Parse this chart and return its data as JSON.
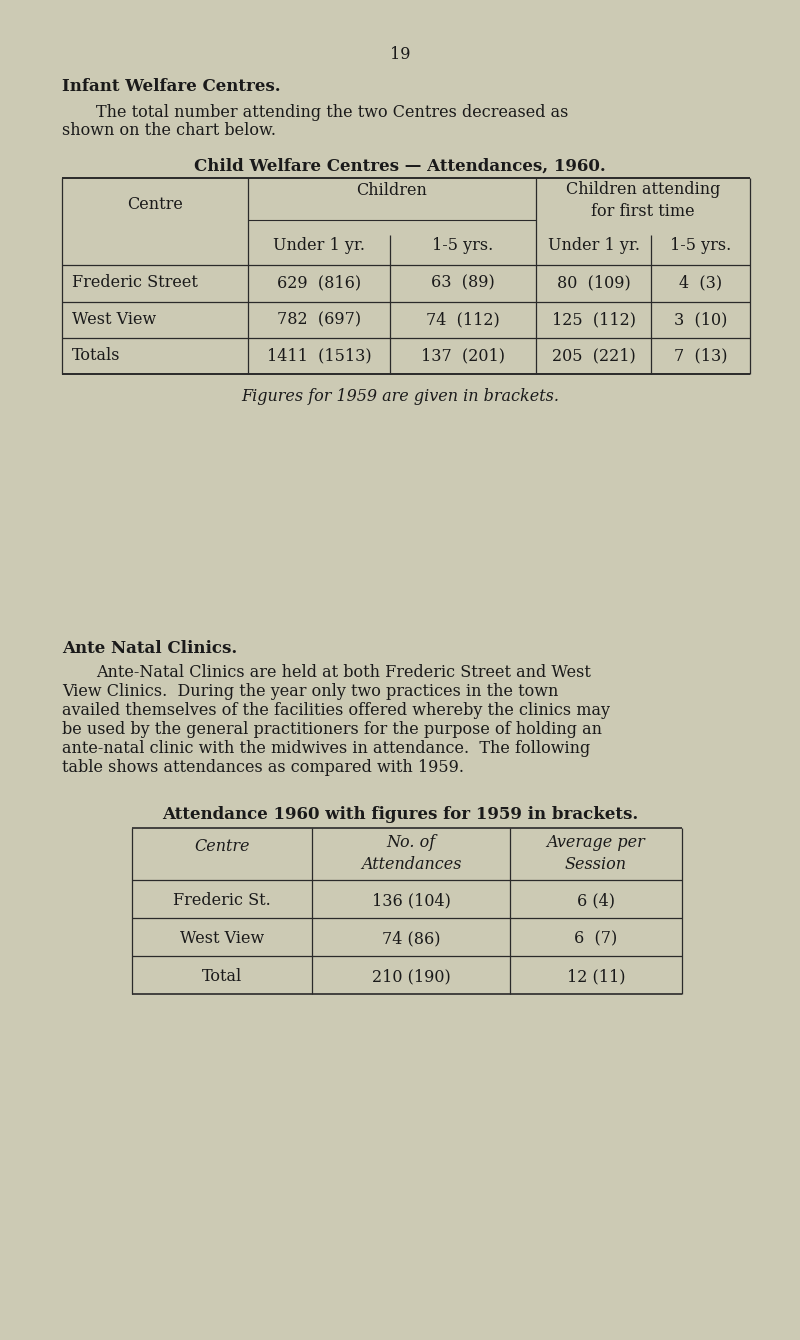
{
  "bg_color": "#cccab4",
  "text_color": "#1a1a1a",
  "page_num": "19",
  "section1_title": "Infant Welfare Centres.",
  "section1_body1": "The total number attending the two Centres decreased as",
  "section1_body2": "shown on the chart below.",
  "table1_title": "Child Welfare Centres — Attendances, 1960.",
  "table1_rows": [
    [
      "Frederic Street",
      "629  (816)",
      "63  (89)",
      "80  (109)",
      "4  (3)"
    ],
    [
      "West View",
      "782  (697)",
      "74  (112)",
      "125  (112)",
      "3  (10)"
    ],
    [
      "Totals",
      "1411  (1513)",
      "137  (201)",
      "205  (221)",
      "7  (13)"
    ]
  ],
  "table1_footnote": "Figures for 1959 are given in brackets.",
  "section2_title": "Ante Natal Clinics.",
  "section2_lines": [
    "Ante-Natal Clinics are held at both Frederic Street and West",
    "View Clinics.  During the year only two practices in the town",
    "availed themselves of the facilities offered whereby the clinics may",
    "be used by the general practitioners for the purpose of holding an",
    "ante-natal clinic with the midwives in attendance.  The following",
    "table shows attendances as compared with 1959."
  ],
  "table2_title": "Attendance 1960 with figures for 1959 in brackets.",
  "table2_rows": [
    [
      "Frederic St.",
      "136 (104)",
      "6 (4)"
    ],
    [
      "West View",
      "74 (86)",
      "6  (7)"
    ],
    [
      "Total",
      "210 (190)",
      "12 (11)"
    ]
  ]
}
